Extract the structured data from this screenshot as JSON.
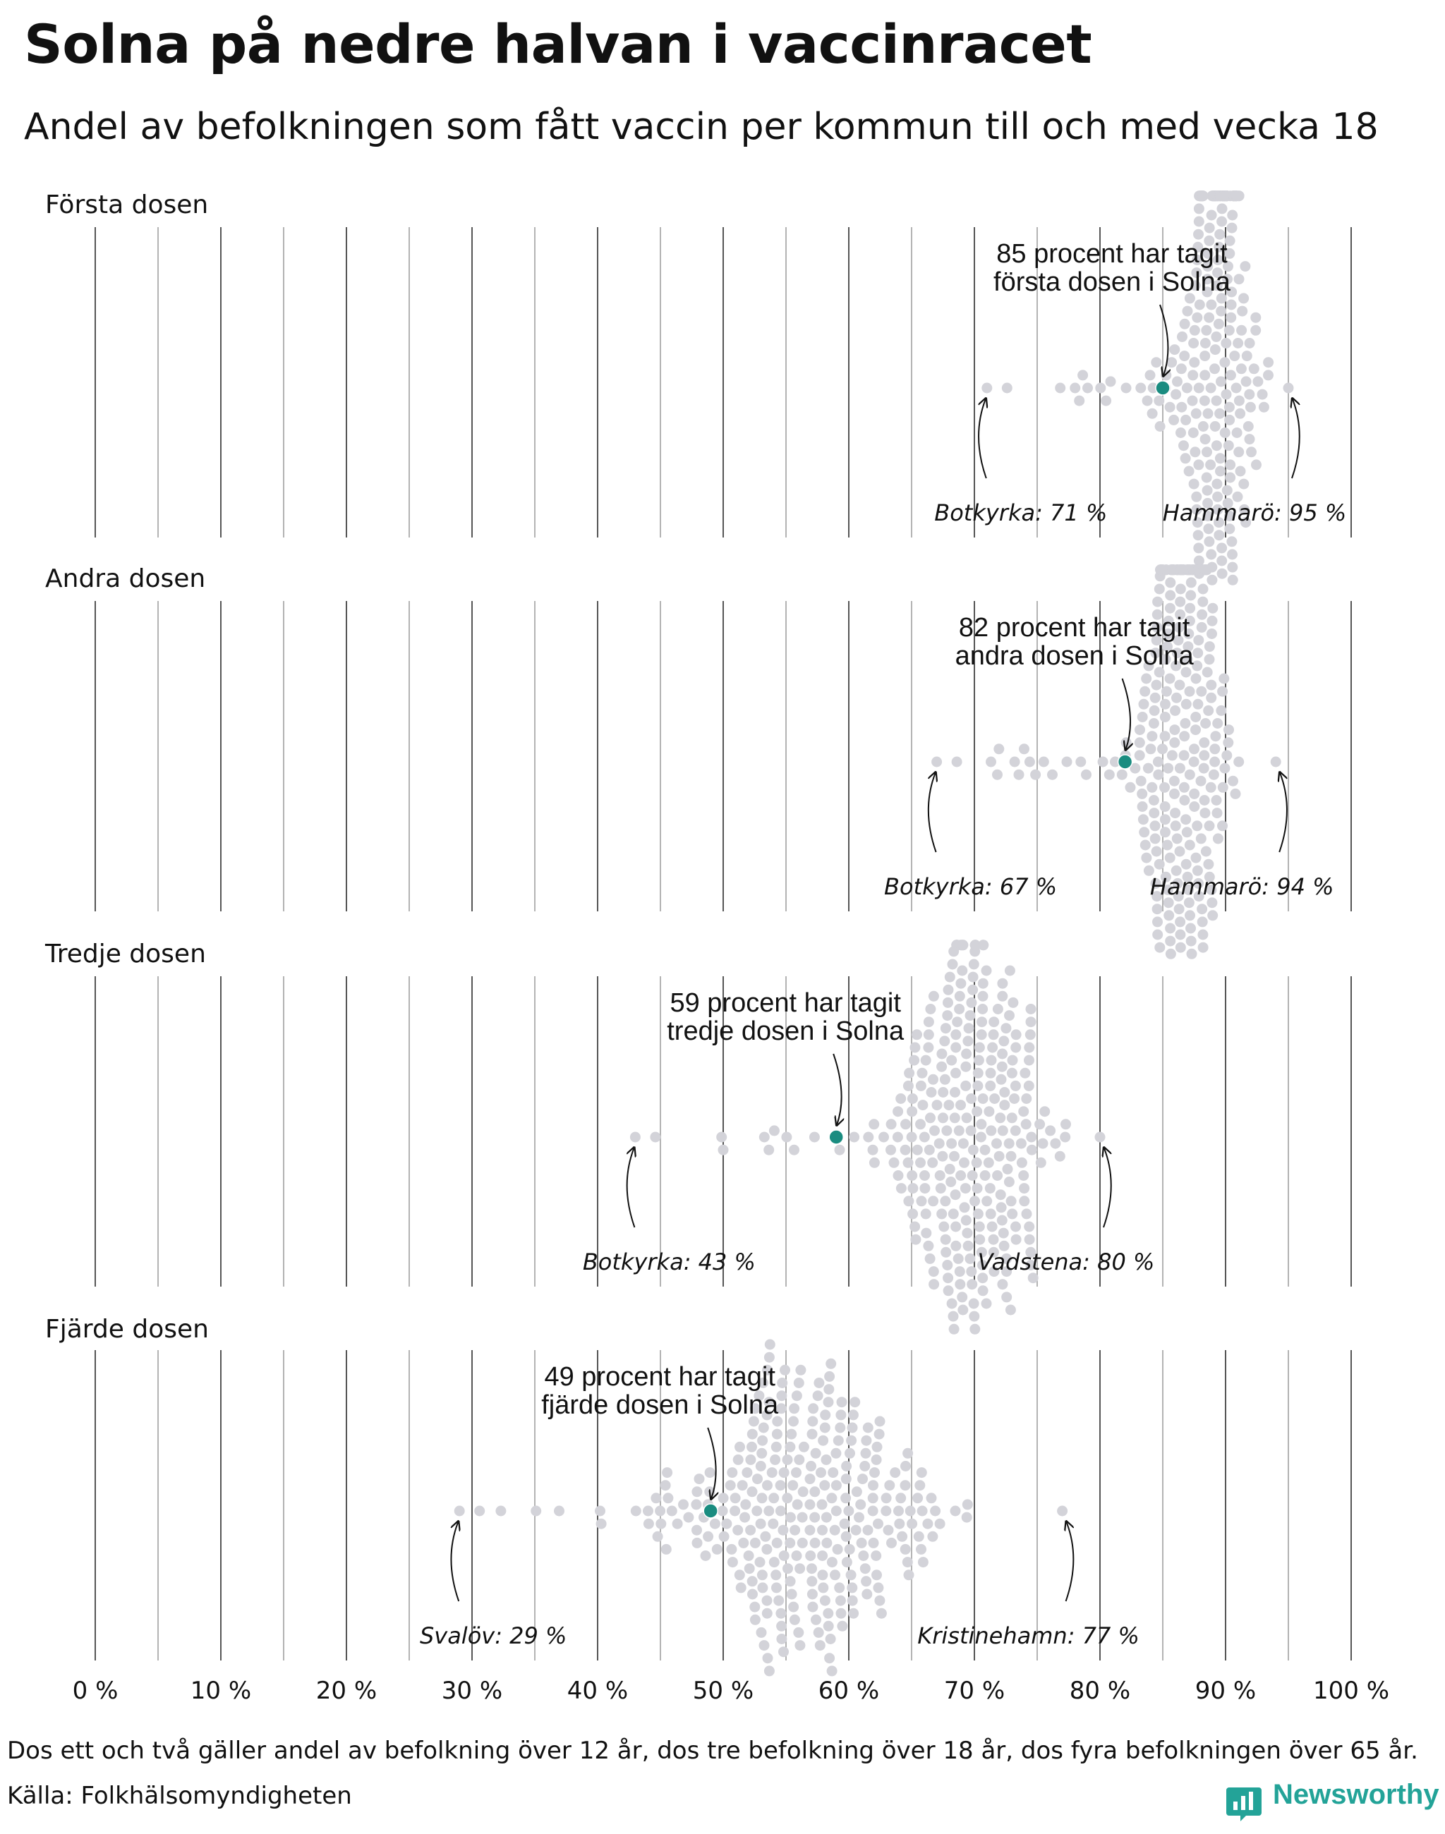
{
  "title": "Solna på nedre halvan i vaccinracet",
  "subtitle": "Andel av befolkningen som fått vaccin per kommun till och med vecka 18",
  "footnote": "Dos ett och två gäller andel av befolkning över 12 år, dos tre befolkning över 18 år, dos fyra befolkningen över 65 år.",
  "source": "Källa: Folkhälsomyndigheten",
  "brand": "Newsworthy",
  "colors": {
    "highlight": "#1a8c80",
    "dots": "#d3d3d9",
    "gridline": "#555555",
    "brand": "#23a398"
  },
  "chart_data": {
    "type": "scatter",
    "subtype": "beeswarm",
    "xlabel": "",
    "xlim": [
      0,
      100
    ],
    "x_ticks": [
      0,
      10,
      20,
      30,
      40,
      50,
      60,
      70,
      80,
      90,
      100
    ],
    "x_tick_labels": [
      "0 %",
      "10 %",
      "20 %",
      "30 %",
      "40 %",
      "50 %",
      "60 %",
      "70 %",
      "80 %",
      "90 %",
      "100 %"
    ],
    "unit": "percent",
    "panels": [
      {
        "name": "Första dosen",
        "highlight": {
          "label": "Solna",
          "value": 85,
          "annotation_line1": "85 procent har tagit",
          "annotation_line2": "första dosen i Solna"
        },
        "min": {
          "label": "Botkyrka: 71 %",
          "value": 71
        },
        "max": {
          "label": "Hammarö: 95 %",
          "value": 95
        },
        "distribution": {
          "center": 89.5,
          "spread": 2.0,
          "count": 290
        }
      },
      {
        "name": "Andra dosen",
        "highlight": {
          "label": "Solna",
          "value": 82,
          "annotation_line1": "82 procent har tagit",
          "annotation_line2": "andra dosen i Solna"
        },
        "min": {
          "label": "Botkyrka: 67 %",
          "value": 67
        },
        "max": {
          "label": "Hammarö: 94 %",
          "value": 94
        },
        "distribution": {
          "center": 86.5,
          "spread": 2.5,
          "count": 290
        }
      },
      {
        "name": "Tredje dosen",
        "highlight": {
          "label": "Solna",
          "value": 59,
          "annotation_line1": "59 procent har tagit",
          "annotation_line2": "tredje dosen i Solna"
        },
        "min": {
          "label": "Botkyrka: 43 %",
          "value": 43
        },
        "max": {
          "label": "Vadstena: 80 %",
          "value": 80
        },
        "distribution": {
          "center": 70,
          "spread": 4.0,
          "count": 290
        }
      },
      {
        "name": "Fjärde dosen",
        "highlight": {
          "label": "Solna",
          "value": 49,
          "annotation_line1": "49 procent har tagit",
          "annotation_line2": "fjärde dosen i Solna"
        },
        "min": {
          "label": "Svalöv: 29 %",
          "value": 29
        },
        "max": {
          "label": "Kristinehamn: 77 %",
          "value": 77
        },
        "distribution": {
          "center": 57,
          "spread": 7.5,
          "count": 290
        }
      }
    ]
  }
}
